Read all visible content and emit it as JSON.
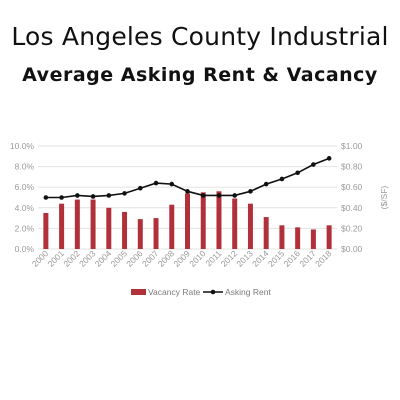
{
  "header": {
    "title": "Los Angeles County Industrial",
    "subtitle": "Average Asking Rent & Vacancy"
  },
  "colors": {
    "bar": "#b0313a",
    "line": "#111111",
    "grid": "#e3e3e3",
    "tick": "#9a9a9a"
  },
  "chart_data": {
    "type": "bar",
    "title": "Los Angeles County Industrial",
    "subtitle": "Average Asking Rent & Vacancy",
    "categories": [
      "2000",
      "2001",
      "2002",
      "2003",
      "2004",
      "2005",
      "2006",
      "2007",
      "2008",
      "2009",
      "2010",
      "2011",
      "2012",
      "2013",
      "2014",
      "2015",
      "2016",
      "2017",
      "2018"
    ],
    "series": [
      {
        "name": "Vacancy Rate",
        "type": "bar",
        "axis": "left",
        "values": [
          3.5,
          4.4,
          4.8,
          4.8,
          4.0,
          3.6,
          2.9,
          3.0,
          4.3,
          5.4,
          5.5,
          5.6,
          4.9,
          4.4,
          3.1,
          2.3,
          2.1,
          1.9,
          2.3
        ]
      },
      {
        "name": "Asking Rent",
        "type": "line",
        "axis": "right",
        "values": [
          0.5,
          0.5,
          0.52,
          0.51,
          0.52,
          0.54,
          0.59,
          0.64,
          0.63,
          0.56,
          0.52,
          0.52,
          0.52,
          0.56,
          0.63,
          0.68,
          0.74,
          0.82,
          0.88
        ]
      }
    ],
    "ylim_left": [
      0,
      10
    ],
    "ylim_right": [
      0,
      1
    ],
    "left_ticks": [
      "0.0%",
      "2.0%",
      "4.0%",
      "6.0%",
      "8.0%",
      "10.0%"
    ],
    "right_ticks": [
      "$0.00",
      "$0.20",
      "$0.40",
      "$0.60",
      "$0.80",
      "$1.00"
    ],
    "ylabel_right": "($/SF)",
    "xlabel": "",
    "ylabel": "",
    "grid": true,
    "legend_position": "bottom"
  }
}
